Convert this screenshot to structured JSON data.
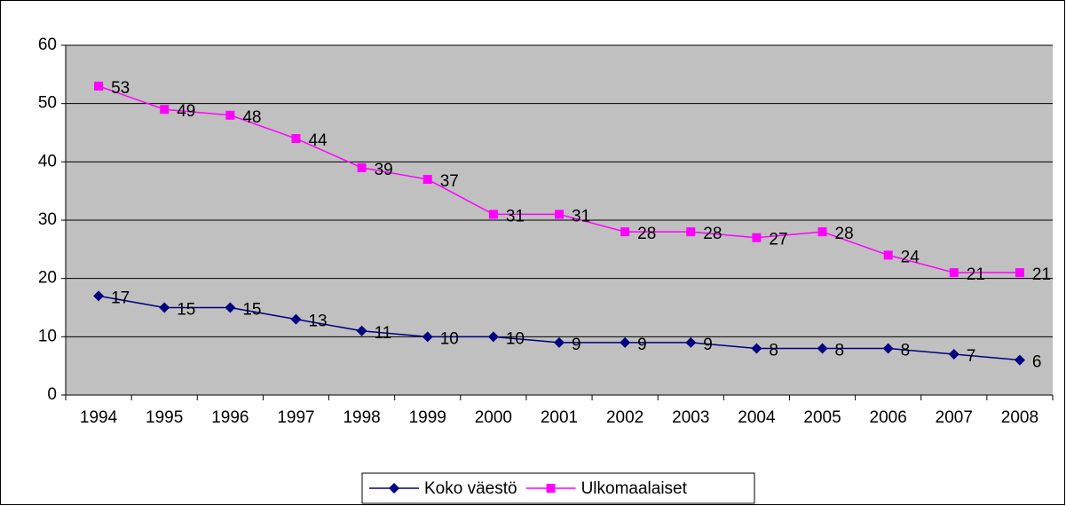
{
  "chart_data": {
    "type": "line",
    "categories": [
      "1994",
      "1995",
      "1996",
      "1997",
      "1998",
      "1999",
      "2000",
      "2001",
      "2002",
      "2003",
      "2004",
      "2005",
      "2006",
      "2007",
      "2008"
    ],
    "series": [
      {
        "name": "Koko väestö",
        "color": "#000080",
        "marker": "diamond",
        "values": [
          17,
          15,
          15,
          13,
          11,
          10,
          10,
          9,
          9,
          9,
          8,
          8,
          8,
          7,
          6
        ]
      },
      {
        "name": "Ulkomaalaiset",
        "color": "#ff00ff",
        "marker": "square",
        "values": [
          53,
          49,
          48,
          44,
          39,
          37,
          31,
          31,
          28,
          28,
          27,
          28,
          24,
          21,
          21
        ]
      }
    ],
    "ylim": [
      0,
      60
    ],
    "yticks": [
      0,
      10,
      20,
      30,
      40,
      50,
      60
    ],
    "grid": true,
    "legend": "bottom",
    "data_labels": true
  }
}
